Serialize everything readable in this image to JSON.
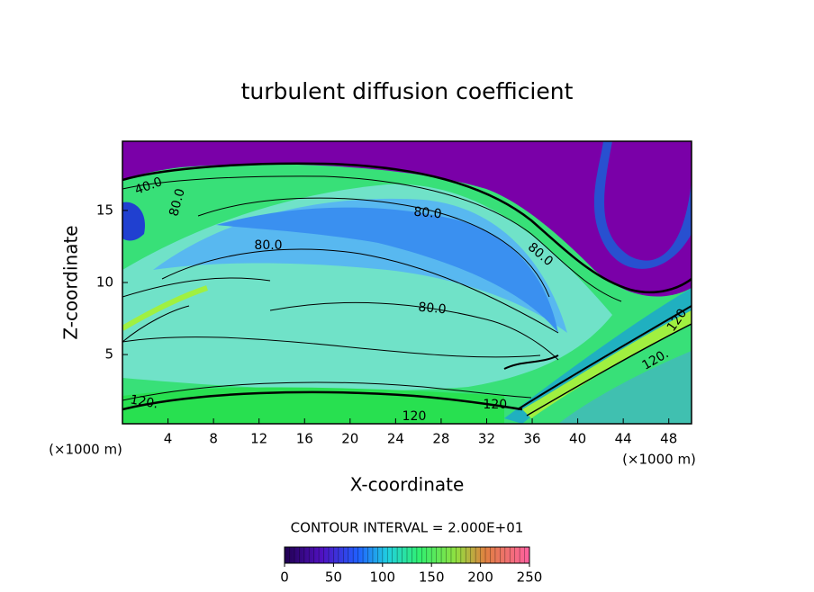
{
  "chart_data": {
    "type": "contour",
    "title": "turbulent diffusion coefficient",
    "x_label": "X-coordinate",
    "y_label": "Z-coordinate",
    "x_unit": "(×1000 m)",
    "y_unit": "(×1000 m)",
    "xlim": [
      0,
      50
    ],
    "ylim": [
      0.2,
      19.8
    ],
    "xticks": [
      4,
      8,
      12,
      16,
      20,
      24,
      28,
      32,
      36,
      40,
      44,
      48
    ],
    "yticks": [
      5,
      10,
      15
    ],
    "contour_labels": [
      "40.0",
      "80.0",
      "80.0",
      "80.0",
      "80.0",
      "80.0",
      "120",
      "120.",
      "120.",
      "120.",
      "120"
    ],
    "contour_interval": "CONTOUR INTERVAL = 2.000E+01",
    "colorbar": {
      "lim": [
        0,
        250
      ],
      "ticks": [
        0,
        50,
        100,
        150,
        200,
        250
      ]
    }
  }
}
